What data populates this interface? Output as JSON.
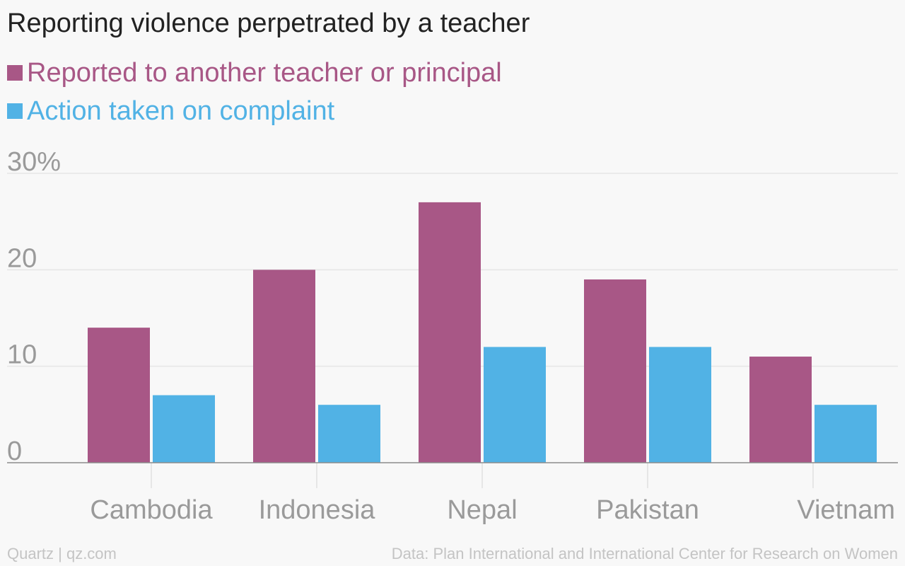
{
  "chart_data": {
    "type": "bar",
    "title": "Reporting violence perpetrated by a teacher",
    "categories": [
      "Cambodia",
      "Indonesia",
      "Nepal",
      "Pakistan",
      "Vietnam"
    ],
    "series": [
      {
        "name": "Reported to another teacher or principal",
        "color": "#a85786",
        "values": [
          14,
          20,
          27,
          19,
          11
        ]
      },
      {
        "name": "Action taken on complaint",
        "color": "#51b2e5",
        "values": [
          7,
          6,
          12,
          12,
          6
        ]
      }
    ],
    "ylim": [
      0,
      30
    ],
    "yticks": [
      0,
      10,
      20,
      30
    ],
    "ytick_labels": [
      "0",
      "10",
      "20",
      "30%"
    ],
    "xlabel": "",
    "ylabel": "",
    "grid": true,
    "legend": "top-left"
  },
  "footer": {
    "source_left": "Quartz | qz.com",
    "source_right": "Data: Plan International and International Center for Research on Women"
  }
}
